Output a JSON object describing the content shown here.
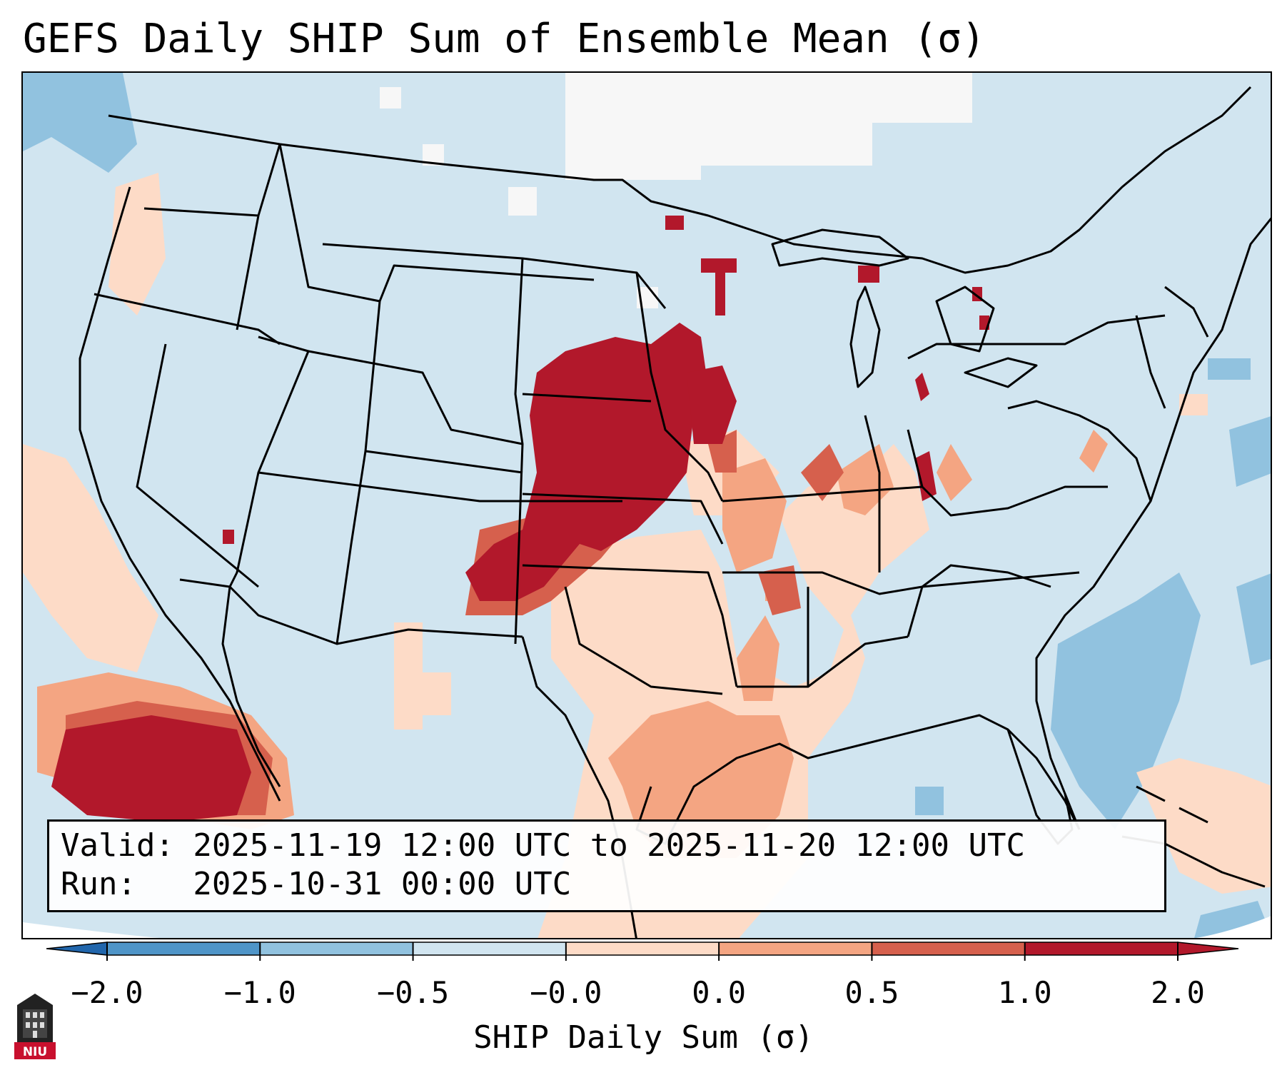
{
  "title": "GEFS Daily SHIP Sum of Ensemble Mean (σ)",
  "info": {
    "valid_line": "Valid: 2025-11-19 12:00 UTC to 2025-11-20 12:00 UTC",
    "run_line": "Run:   2025-10-31 00:00 UTC"
  },
  "colorbar": {
    "label": "SHIP Daily Sum (σ)",
    "ticks": [
      "−2.0",
      "−1.0",
      "−0.5",
      "−0.0",
      "0.0",
      "0.5",
      "1.0",
      "2.0"
    ],
    "colors": [
      "#4f95c8",
      "#91c2df",
      "#d1e5f0",
      "#f7f7f7",
      "#fddbc7",
      "#f4a582",
      "#d6604d",
      "#b2182b"
    ],
    "extend": "both"
  },
  "logo": {
    "text": "NIU",
    "icon": "university-tower-icon"
  }
}
